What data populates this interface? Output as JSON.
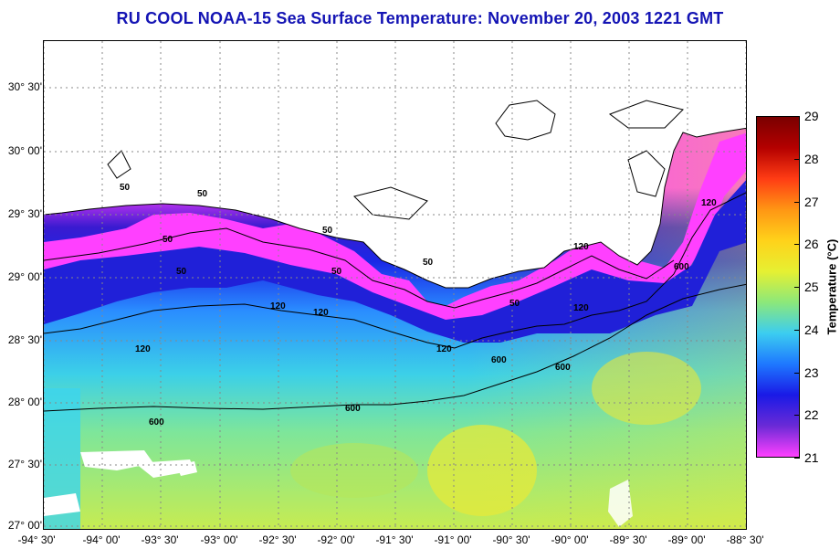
{
  "title": "RU COOL  NOAA-15  Sea Surface Temperature:  November 20, 2003 1221 GMT",
  "map": {
    "lat_labels": [
      "30° 30'",
      "30° 00'",
      "29° 30'",
      "29° 00'",
      "28° 30'",
      "28° 00'",
      "27° 30'",
      "27° 00'"
    ],
    "lon_labels": [
      "-94° 30'",
      "-94° 00'",
      "-93° 30'",
      "-93° 00'",
      "-92° 30'",
      "-92° 00'",
      "-91° 30'",
      "-91° 00'",
      "-90° 30'",
      "-90° 00'",
      "-89° 30'",
      "-89° 00'",
      "-88° 30'"
    ],
    "contour_labels": [
      "50",
      "50",
      "50",
      "50",
      "50",
      "50",
      "50",
      "50",
      "120",
      "120",
      "120",
      "120",
      "120",
      "120",
      "120",
      "600",
      "600",
      "600",
      "600",
      "600"
    ],
    "grid": true,
    "land_color": "#ffffff"
  },
  "colorbar": {
    "label": "Temperature (°C)",
    "ticks": [
      "29",
      "28",
      "27",
      "26",
      "25",
      "24",
      "23",
      "22",
      "21"
    ],
    "colors": [
      "#ff40ff",
      "#6a2ad6",
      "#1a1ae6",
      "#1e78ff",
      "#3ccdf0",
      "#8ce87a",
      "#e6f032",
      "#ffd21a",
      "#ff9614",
      "#ff3c14",
      "#b40000",
      "#7a0000"
    ]
  }
}
